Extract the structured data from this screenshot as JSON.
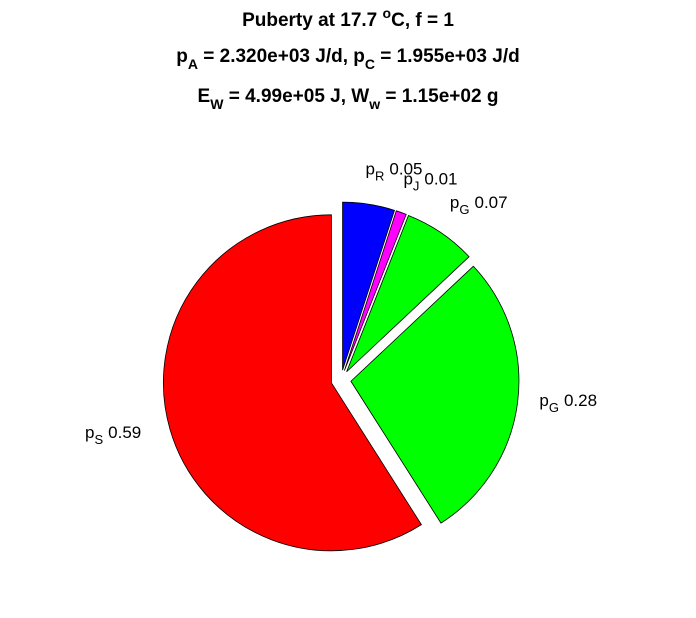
{
  "chart_data": {
    "type": "pie",
    "title": [
      [
        {
          "text": "Puberty at 17.7 "
        },
        {
          "text": "o",
          "shift": "sup"
        },
        {
          "text": "C, f = 1"
        }
      ],
      [
        {
          "text": "p"
        },
        {
          "text": "A",
          "shift": "sub"
        },
        {
          "text": " = 2.320e+03 J/d,  p"
        },
        {
          "text": "C",
          "shift": "sub"
        },
        {
          "text": " = 1.955e+03 J/d"
        }
      ],
      [
        {
          "text": "E"
        },
        {
          "text": "W",
          "shift": "sub"
        },
        {
          "text": " = 4.99e+05 J, W"
        },
        {
          "text": "w",
          "shift": "sub"
        },
        {
          "text": " = 1.15e+02 g"
        }
      ]
    ],
    "categories": [
      "p",
      "p",
      "p",
      "p",
      "p"
    ],
    "category_subscripts": [
      "R",
      "J",
      "G",
      "G",
      "S"
    ],
    "values": [
      0.05,
      0.01,
      0.07,
      0.28,
      0.59
    ],
    "colors": [
      "#0000ff",
      "#ff00ff",
      "#00ff00",
      "#00ff00",
      "#ff0000"
    ],
    "explode": [
      true,
      true,
      true,
      true,
      true
    ]
  }
}
